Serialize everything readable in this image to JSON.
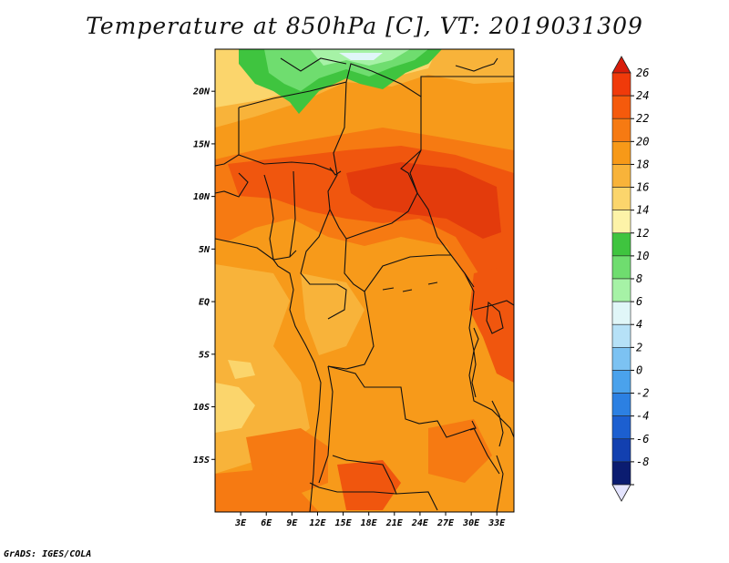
{
  "title": "Temperature at 850hPa [C], VT: 2019031309",
  "credit": "GrADS: IGES/COLA",
  "map": {
    "lon_range": [
      0,
      35
    ],
    "lat_range": [
      -20,
      24
    ],
    "longitude_ticks": [
      {
        "value": 3,
        "label": "3E"
      },
      {
        "value": 6,
        "label": "6E"
      },
      {
        "value": 9,
        "label": "9E"
      },
      {
        "value": 12,
        "label": "12E"
      },
      {
        "value": 15,
        "label": "15E"
      },
      {
        "value": 18,
        "label": "18E"
      },
      {
        "value": 21,
        "label": "21E"
      },
      {
        "value": 24,
        "label": "24E"
      },
      {
        "value": 27,
        "label": "27E"
      },
      {
        "value": 30,
        "label": "30E"
      },
      {
        "value": 33,
        "label": "33E"
      }
    ],
    "latitude_ticks": [
      {
        "value": 20,
        "label": "20N"
      },
      {
        "value": 15,
        "label": "15N"
      },
      {
        "value": 10,
        "label": "10N"
      },
      {
        "value": 5,
        "label": "5N"
      },
      {
        "value": 0,
        "label": "EQ"
      },
      {
        "value": -5,
        "label": "5S"
      },
      {
        "value": -10,
        "label": "10S"
      },
      {
        "value": -15,
        "label": "15S"
      }
    ]
  },
  "colorbar": {
    "levels": [
      {
        "value": "26",
        "color": "#f03a0a"
      },
      {
        "value": "24",
        "color": "#f55a0c"
      },
      {
        "value": "22",
        "color": "#f67a12"
      },
      {
        "value": "20",
        "color": "#f79918"
      },
      {
        "value": "18",
        "color": "#f8b33a"
      },
      {
        "value": "16",
        "color": "#fbd56c"
      },
      {
        "value": "14",
        "color": "#fdf3a8"
      },
      {
        "value": "12",
        "color": "#3fc43f"
      },
      {
        "value": "10",
        "color": "#6fdd6f"
      },
      {
        "value": "8",
        "color": "#a6f2a6"
      },
      {
        "value": "6",
        "color": "#e0f6f8"
      },
      {
        "value": "4",
        "color": "#b6e1f7"
      },
      {
        "value": "2",
        "color": "#7cc2f2"
      },
      {
        "value": "0",
        "color": "#4aa2ec"
      },
      {
        "value": "-2",
        "color": "#2c80e2"
      },
      {
        "value": "-4",
        "color": "#1c5fd0"
      },
      {
        "value": "-6",
        "color": "#1240b0"
      },
      {
        "value": "-8",
        "color": "#0b1c70"
      }
    ],
    "top_color": "#d81c0a",
    "bottom_color": "#e4e4ff"
  },
  "palette": {
    "warm_20": "#f79a1a",
    "warm_22": "#f67a12",
    "warm_24": "#f0560e",
    "warm_26": "#e33b0c",
    "light_18": "#f8b33a",
    "light_16": "#fbd56c",
    "green_12": "#3fc43f",
    "green_10": "#6fdd6f",
    "green_8": "#a6f2a6",
    "pale_6": "#e0f6f8"
  }
}
